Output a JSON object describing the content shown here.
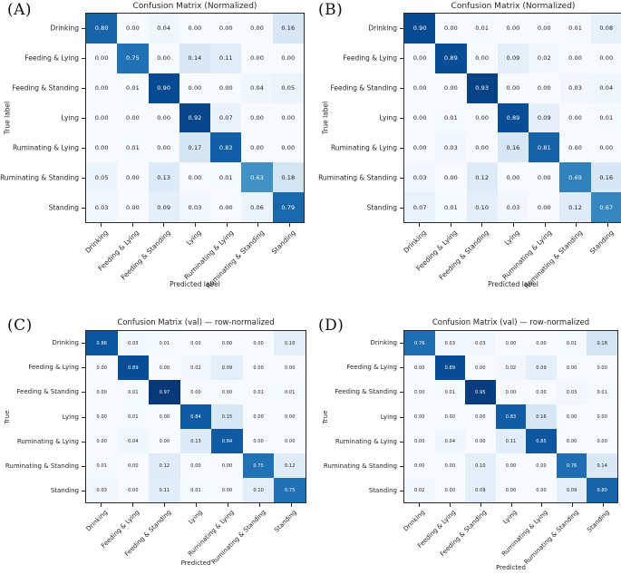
{
  "page": {
    "background": "#ffffff"
  },
  "panels": [
    {
      "corner_label": "(A)"
    },
    {
      "corner_label": "(B)"
    },
    {
      "corner_label": "(C)"
    },
    {
      "corner_label": "(D)"
    }
  ],
  "colors": {
    "colormap_name": "Blues",
    "cell_text_dark": "#1a1a1a",
    "cell_text_light": "#ffffff",
    "axes_spine": "#2b2b2b",
    "label_text": "#262626"
  },
  "chart_data": [
    {
      "type": "heatmap",
      "panel": "A",
      "title": "Confusion Matrix (Normalized)",
      "xlabel": "Predicted label",
      "ylabel": "True label",
      "colormap": "Blues",
      "value_range": [
        0,
        1
      ],
      "x_categories": [
        "Drinking",
        "Feeding & Lying",
        "Feeding & Standing",
        "Lying",
        "Ruminating & Lying",
        "Ruminating & Standing",
        "Standing"
      ],
      "y_categories": [
        "Drinking",
        "Feeding & Lying",
        "Feeding & Standing",
        "Lying",
        "Ruminating & Lying",
        "Ruminating & Standing",
        "Standing"
      ],
      "matrix": [
        [
          0.8,
          0.0,
          0.04,
          0.0,
          0.0,
          0.0,
          0.16
        ],
        [
          0.0,
          0.75,
          0.0,
          0.14,
          0.11,
          0.0,
          0.0
        ],
        [
          0.0,
          0.01,
          0.9,
          0.0,
          0.0,
          0.04,
          0.05
        ],
        [
          0.0,
          0.0,
          0.0,
          0.92,
          0.07,
          0.0,
          0.0
        ],
        [
          0.0,
          0.01,
          0.0,
          0.17,
          0.82,
          0.0,
          0.0
        ],
        [
          0.05,
          0.0,
          0.13,
          0.0,
          0.01,
          0.63,
          0.18
        ],
        [
          0.03,
          0.0,
          0.09,
          0.03,
          0.0,
          0.06,
          0.79
        ]
      ]
    },
    {
      "type": "heatmap",
      "panel": "B",
      "title": "Confusion Matrix (Normalized)",
      "xlabel": "Predicted label",
      "ylabel": "True label",
      "colormap": "Blues",
      "value_range": [
        0,
        1
      ],
      "x_categories": [
        "Drinking",
        "Feeding & Lying",
        "Feeding & Standing",
        "Lying",
        "Ruminating & Lying",
        "Ruminating & Standing",
        "Standing"
      ],
      "y_categories": [
        "Drinking",
        "Feeding & Lying",
        "Feeding & Standing",
        "Lying",
        "Ruminating & Lying",
        "Ruminating & Standing",
        "Standing"
      ],
      "matrix": [
        [
          0.9,
          0.0,
          0.01,
          0.0,
          0.0,
          0.01,
          0.08
        ],
        [
          0.0,
          0.89,
          0.0,
          0.09,
          0.02,
          0.0,
          0.0
        ],
        [
          0.0,
          0.0,
          0.93,
          0.0,
          0.0,
          0.03,
          0.04
        ],
        [
          0.0,
          0.01,
          0.0,
          0.89,
          0.09,
          0.0,
          0.01
        ],
        [
          0.0,
          0.03,
          0.0,
          0.16,
          0.81,
          0.0,
          0.0
        ],
        [
          0.03,
          0.0,
          0.12,
          0.0,
          0.0,
          0.69,
          0.16
        ],
        [
          0.07,
          0.01,
          0.1,
          0.03,
          0.0,
          0.12,
          0.67
        ]
      ]
    },
    {
      "type": "heatmap",
      "panel": "C",
      "title": "Confusion Matrix (val) — row-normalized",
      "xlabel": "Predicted",
      "ylabel": "True",
      "colormap": "Blues",
      "value_range": [
        0,
        1
      ],
      "x_categories": [
        "Drinking",
        "Feeding & Lying",
        "Feeding & Standing",
        "Lying",
        "Ruminating & Lying",
        "Ruminating & Standing",
        "Standing"
      ],
      "y_categories": [
        "Drinking",
        "Feeding & Lying",
        "Feeding & Standing",
        "Lying",
        "Ruminating & Lying",
        "Ruminating & Standing",
        "Standing"
      ],
      "matrix": [
        [
          0.86,
          0.03,
          0.01,
          0.0,
          0.0,
          0.0,
          0.1
        ],
        [
          0.0,
          0.89,
          0.0,
          0.02,
          0.09,
          0.0,
          0.0
        ],
        [
          0.0,
          0.01,
          0.97,
          0.0,
          0.0,
          0.01,
          0.01
        ],
        [
          0.0,
          0.01,
          0.0,
          0.84,
          0.15,
          0.0,
          0.0
        ],
        [
          0.0,
          0.04,
          0.0,
          0.13,
          0.84,
          0.0,
          0.0
        ],
        [
          0.01,
          0.0,
          0.12,
          0.0,
          0.0,
          0.75,
          0.12
        ],
        [
          0.03,
          0.0,
          0.11,
          0.01,
          0.0,
          0.1,
          0.75
        ]
      ]
    },
    {
      "type": "heatmap",
      "panel": "D",
      "title": "Confusion Matrix (val) — row-normalized",
      "xlabel": "Predicted",
      "ylabel": "True",
      "colormap": "Blues",
      "value_range": [
        0,
        1
      ],
      "x_categories": [
        "Drinking",
        "Feeding & Lying",
        "Feeding & Standing",
        "Lying",
        "Ruminating & Lying",
        "Ruminating & Standing",
        "Standing"
      ],
      "y_categories": [
        "Drinking",
        "Feeding & Lying",
        "Feeding & Standing",
        "Lying",
        "Ruminating & Lying",
        "Ruminating & Standing",
        "Standing"
      ],
      "matrix": [
        [
          0.76,
          0.03,
          0.03,
          0.0,
          0.0,
          0.01,
          0.18
        ],
        [
          0.0,
          0.89,
          0.0,
          0.02,
          0.09,
          0.0,
          0.0
        ],
        [
          0.0,
          0.01,
          0.95,
          0.0,
          0.0,
          0.03,
          0.01
        ],
        [
          0.0,
          0.0,
          0.0,
          0.83,
          0.16,
          0.0,
          0.0
        ],
        [
          0.0,
          0.04,
          0.0,
          0.11,
          0.85,
          0.0,
          0.0
        ],
        [
          0.0,
          0.0,
          0.1,
          0.0,
          0.0,
          0.76,
          0.14
        ],
        [
          0.02,
          0.0,
          0.09,
          0.0,
          0.0,
          0.09,
          0.8
        ]
      ]
    }
  ]
}
